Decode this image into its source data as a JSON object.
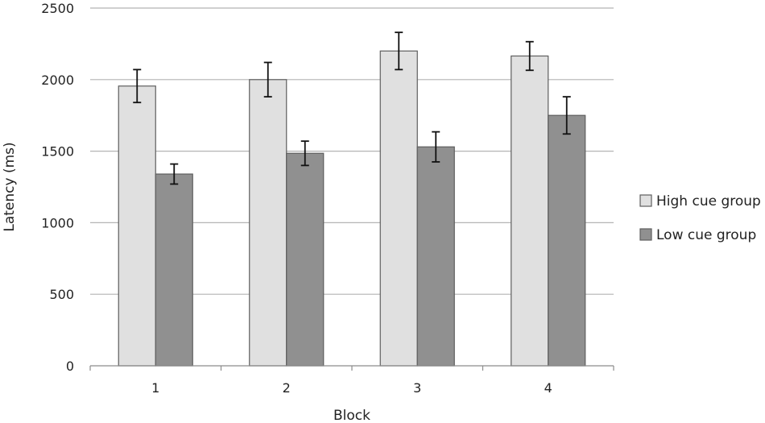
{
  "chart_data": {
    "type": "bar",
    "title": "",
    "xlabel": "Block",
    "ylabel": "Latency (ms)",
    "categories": [
      "1",
      "2",
      "3",
      "4"
    ],
    "ylim": [
      0,
      2500
    ],
    "yticks": [
      0,
      500,
      1000,
      1500,
      2000,
      2500
    ],
    "grid": true,
    "legend_position": "right",
    "error_bars": true,
    "series": [
      {
        "name": "High cue group",
        "color": "#e0e0e0",
        "values": [
          1955,
          2000,
          2200,
          2165
        ],
        "error": [
          115,
          120,
          130,
          100
        ]
      },
      {
        "name": "Low cue group",
        "color": "#909090",
        "values": [
          1340,
          1485,
          1530,
          1750
        ],
        "error": [
          70,
          85,
          105,
          130
        ]
      }
    ]
  }
}
